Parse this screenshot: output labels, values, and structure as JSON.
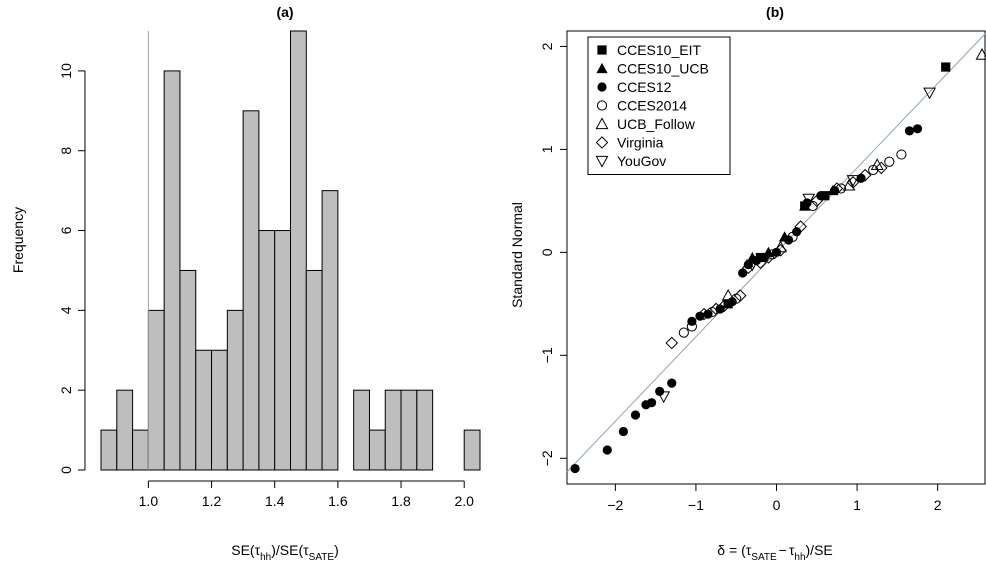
{
  "chart_data": [
    {
      "panel": "(a)",
      "type": "bar",
      "title": "(a)",
      "xlabel_parts": {
        "prefix": "SE(",
        "tau1": "τ",
        "hat": "^",
        "sub1": "hh",
        "mid": ")/SE(",
        "tau2": "τ",
        "sub2": "SATE",
        "suffix": ")"
      },
      "ylabel": "Frequency",
      "bin_width": 0.05,
      "bin_edges": [
        0.85,
        0.9,
        0.95,
        1.0,
        1.05,
        1.1,
        1.15,
        1.2,
        1.25,
        1.3,
        1.35,
        1.4,
        1.45,
        1.5,
        1.55,
        1.6,
        1.65,
        1.7,
        1.75,
        1.8,
        1.85,
        1.9,
        1.95,
        2.0,
        2.05
      ],
      "values": [
        1,
        2,
        1,
        4,
        10,
        5,
        3,
        3,
        4,
        9,
        6,
        6,
        11,
        5,
        7,
        0,
        2,
        1,
        2,
        2,
        2,
        0,
        0,
        1
      ],
      "xlim": [
        0.85,
        2.05
      ],
      "ylim": [
        0,
        11
      ],
      "xticks": [
        1.0,
        1.2,
        1.4,
        1.6,
        1.8,
        2.0
      ],
      "xtick_labels": [
        "1.0",
        "1.2",
        "1.4",
        "1.6",
        "1.8",
        "2.0"
      ],
      "yticks": [
        0,
        2,
        4,
        6,
        8,
        10
      ],
      "ytick_labels": [
        "0",
        "2",
        "4",
        "6",
        "8",
        "10"
      ],
      "reference_line_x": 1.0,
      "bar_color": "#bebebe",
      "ref_line_color": "#8fa3b5"
    },
    {
      "panel": "(b)",
      "type": "scatter",
      "title": "(b)",
      "xlabel_parts": {
        "delta": "δ",
        "hat": "^",
        "eq": "= (",
        "tau1": "τ",
        "sub1": "SATE",
        "minus": "−",
        "tau2": "τ",
        "sub2": "hh",
        "close": ")/",
        "se": "SE"
      },
      "ylabel": "Standard Normal",
      "xlim": [
        -2.6,
        2.6
      ],
      "ylim": [
        -2.25,
        2.15
      ],
      "xticks": [
        -2,
        -1,
        0,
        1,
        2
      ],
      "xtick_labels": [
        "−2",
        "−1",
        "0",
        "1",
        "2"
      ],
      "yticks": [
        -2,
        -1,
        0,
        1,
        2
      ],
      "ytick_labels": [
        "−2",
        "−1",
        "0",
        "1",
        "2"
      ],
      "reference_line": {
        "slope": 0.82,
        "intercept": 0.0,
        "color": "#8fa3b5"
      },
      "legend_position": "top-left",
      "series": [
        {
          "name": "CCES10_EIT",
          "marker": "filled-square",
          "points": [
            [
              2.1,
              1.8
            ],
            [
              0.35,
              0.45
            ],
            [
              -0.2,
              -0.05
            ],
            [
              0.6,
              0.55
            ],
            [
              -0.6,
              -0.5
            ]
          ]
        },
        {
          "name": "CCES10_UCB",
          "marker": "filled-triangle",
          "points": [
            [
              0.7,
              0.6
            ],
            [
              0.1,
              0.15
            ],
            [
              -0.3,
              -0.05
            ],
            [
              0.35,
              0.45
            ],
            [
              -0.1,
              0.0
            ]
          ]
        },
        {
          "name": "CCES12",
          "marker": "filled-circle",
          "points": [
            [
              -2.5,
              -2.1
            ],
            [
              -2.1,
              -1.92
            ],
            [
              -1.9,
              -1.74
            ],
            [
              -1.75,
              -1.58
            ],
            [
              -1.62,
              -1.48
            ],
            [
              -1.55,
              -1.46
            ],
            [
              -1.45,
              -1.35
            ],
            [
              -1.3,
              -1.27
            ],
            [
              -1.05,
              -0.67
            ],
            [
              -0.95,
              -0.62
            ],
            [
              -0.85,
              -0.6
            ],
            [
              -0.7,
              -0.55
            ],
            [
              -0.55,
              -0.48
            ],
            [
              -0.42,
              -0.2
            ],
            [
              -0.35,
              -0.12
            ],
            [
              -0.25,
              -0.08
            ],
            [
              -0.15,
              -0.05
            ],
            [
              0.0,
              0.0
            ],
            [
              0.15,
              0.12
            ],
            [
              0.25,
              0.2
            ],
            [
              0.38,
              0.48
            ],
            [
              0.55,
              0.55
            ],
            [
              0.72,
              0.6
            ],
            [
              1.05,
              0.72
            ],
            [
              1.65,
              1.18
            ],
            [
              1.75,
              1.2
            ]
          ]
        },
        {
          "name": "CCES2014",
          "marker": "open-circle",
          "points": [
            [
              -1.15,
              -0.78
            ],
            [
              -1.05,
              -0.72
            ],
            [
              -0.8,
              -0.58
            ],
            [
              -0.5,
              -0.45
            ],
            [
              -0.05,
              -0.02
            ],
            [
              0.2,
              0.15
            ],
            [
              0.45,
              0.45
            ],
            [
              0.8,
              0.62
            ],
            [
              1.2,
              0.8
            ],
            [
              1.4,
              0.88
            ],
            [
              1.55,
              0.95
            ]
          ]
        },
        {
          "name": "UCB_Follow",
          "marker": "open-triangle",
          "points": [
            [
              2.55,
              1.92
            ],
            [
              -0.6,
              -0.42
            ],
            [
              0.05,
              0.05
            ],
            [
              0.9,
              0.65
            ],
            [
              1.25,
              0.85
            ]
          ]
        },
        {
          "name": "Virginia",
          "marker": "open-diamond",
          "points": [
            [
              -1.3,
              -0.88
            ],
            [
              -0.9,
              -0.6
            ],
            [
              -0.75,
              -0.55
            ],
            [
              -0.65,
              -0.52
            ],
            [
              -0.45,
              -0.42
            ],
            [
              -0.35,
              -0.15
            ],
            [
              -0.2,
              -0.1
            ],
            [
              -0.1,
              -0.05
            ],
            [
              0.05,
              0.02
            ],
            [
              0.3,
              0.25
            ],
            [
              0.5,
              0.5
            ],
            [
              0.75,
              0.62
            ],
            [
              0.95,
              0.68
            ],
            [
              1.1,
              0.75
            ],
            [
              1.3,
              0.82
            ]
          ]
        },
        {
          "name": "YouGov",
          "marker": "open-down-triangle",
          "points": [
            [
              1.9,
              1.55
            ],
            [
              -1.4,
              -1.4
            ],
            [
              0.4,
              0.52
            ],
            [
              -0.3,
              -0.12
            ],
            [
              0.95,
              0.7
            ]
          ]
        }
      ]
    }
  ]
}
